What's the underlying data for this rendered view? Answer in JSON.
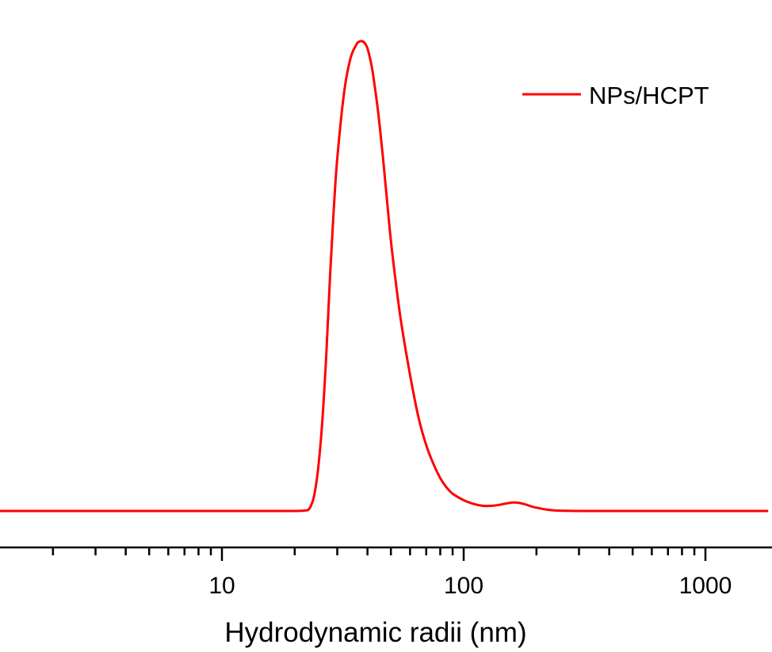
{
  "chart_data": {
    "type": "line",
    "title": "",
    "xlabel": "Hydrodynamic radii (nm)",
    "ylabel": "",
    "x_scale": "log",
    "xlim": [
      1.2,
      1800
    ],
    "ylim": [
      0,
      1
    ],
    "grid": false,
    "legend": {
      "position": "top-right",
      "entries": [
        "NPs/HCPT"
      ]
    },
    "x_ticks": [
      {
        "value": 10,
        "label": "10"
      },
      {
        "value": 100,
        "label": "100"
      },
      {
        "value": 1000,
        "label": "1000"
      }
    ],
    "series": [
      {
        "name": "NPs/HCPT",
        "color": "#ff0000",
        "x": [
          1.2,
          5,
          10,
          15,
          20,
          22,
          23,
          24,
          25,
          26,
          27,
          28,
          29,
          30,
          32,
          34,
          36,
          37,
          38,
          39,
          40,
          41,
          42,
          44,
          46,
          48,
          50,
          52,
          55,
          60,
          65,
          70,
          75,
          80,
          85,
          90,
          100,
          110,
          120,
          130,
          140,
          150,
          160,
          170,
          180,
          190,
          200,
          220,
          240,
          300,
          500,
          1000,
          1800
        ],
        "values": [
          0,
          0,
          0,
          0,
          0,
          0.001,
          0.005,
          0.03,
          0.09,
          0.19,
          0.33,
          0.5,
          0.64,
          0.75,
          0.89,
          0.963,
          0.993,
          0.999,
          1.0,
          0.996,
          0.985,
          0.963,
          0.935,
          0.86,
          0.77,
          0.67,
          0.575,
          0.5,
          0.405,
          0.29,
          0.2,
          0.14,
          0.1,
          0.07,
          0.05,
          0.037,
          0.023,
          0.015,
          0.011,
          0.011,
          0.013,
          0.016,
          0.018,
          0.017,
          0.014,
          0.01,
          0.007,
          0.003,
          0.001,
          0,
          0,
          0,
          0
        ]
      }
    ]
  }
}
